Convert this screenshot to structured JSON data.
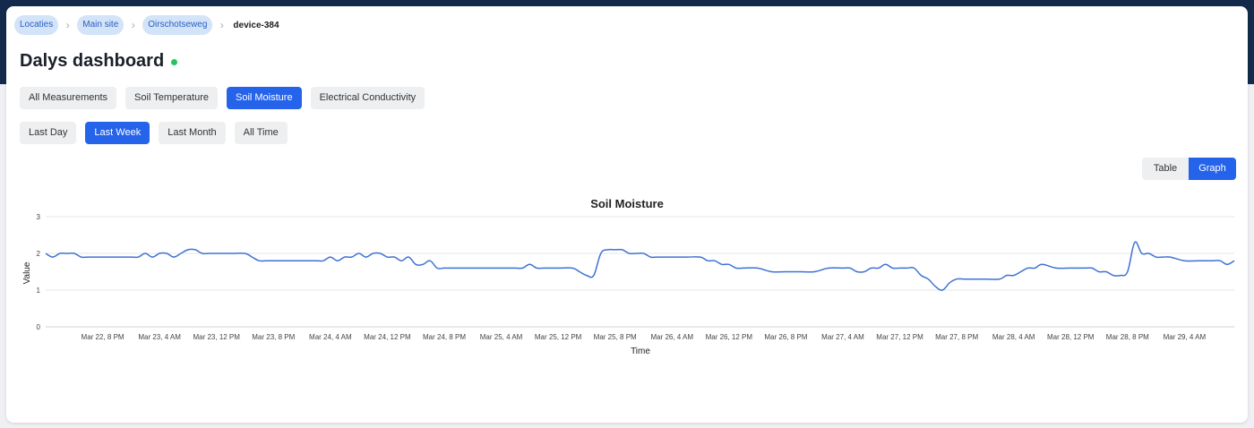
{
  "breadcrumb": {
    "items": [
      "Locaties",
      "Main site",
      "Oirschotseweg"
    ],
    "current": "device-384",
    "separator": "›"
  },
  "page": {
    "title": "Dalys dashboard",
    "status_color": "#22c55e"
  },
  "measurement_tabs": [
    "All Measurements",
    "Soil Temperature",
    "Soil Moisture",
    "Electrical Conductivity"
  ],
  "measurement_active": "Soil Moisture",
  "range_tabs": [
    "Last Day",
    "Last Week",
    "Last Month",
    "All Time"
  ],
  "range_active": "Last Week",
  "view_toggle": {
    "table_label": "Table",
    "graph_label": "Graph",
    "active": "Graph"
  },
  "colors": {
    "accent": "#2563eb",
    "line": "#3f72d4",
    "header_band": "#142a4c"
  },
  "chart_data": {
    "type": "line",
    "title": "Soil Moisture",
    "xlabel": "Time",
    "ylabel": "Value",
    "ylim": [
      0,
      3
    ],
    "yticks": [
      0,
      1,
      2,
      3
    ],
    "grid": true,
    "legend": "none",
    "x_tick_labels": [
      "Mar 22, 8 PM",
      "Mar 23, 4 AM",
      "Mar 23, 12 PM",
      "Mar 23, 8 PM",
      "Mar 24, 4 AM",
      "Mar 24, 12 PM",
      "Mar 24, 8 PM",
      "Mar 25, 4 AM",
      "Mar 25, 12 PM",
      "Mar 25, 8 PM",
      "Mar 26, 4 AM",
      "Mar 26, 12 PM",
      "Mar 26, 8 PM",
      "Mar 27, 4 AM",
      "Mar 27, 12 PM",
      "Mar 27, 8 PM",
      "Mar 28, 4 AM",
      "Mar 28, 12 PM",
      "Mar 28, 8 PM",
      "Mar 29, 4 AM"
    ],
    "x_tick_hours": [
      8,
      16,
      24,
      32,
      40,
      48,
      56,
      64,
      72,
      80,
      88,
      96,
      104,
      112,
      120,
      128,
      136,
      144,
      152,
      160
    ],
    "x_start_label": "Mar 22, 12 PM",
    "x_end_label": "Mar 29, 11 AM",
    "series": [
      {
        "x": [
          0,
          1,
          2,
          3,
          4,
          5,
          6,
          7,
          8,
          10,
          12,
          13,
          14,
          15,
          16,
          17,
          18,
          19,
          20,
          21,
          22,
          23,
          24,
          26,
          28,
          29,
          30,
          31,
          32,
          34,
          36,
          38,
          39,
          40,
          41,
          42,
          43,
          44,
          45,
          46,
          47,
          48,
          49,
          50,
          51,
          52,
          53,
          54,
          55,
          56,
          58,
          60,
          62,
          64,
          66,
          67,
          68,
          69,
          70,
          72,
          74,
          75,
          76,
          77,
          78,
          79,
          80,
          81,
          82,
          83,
          84,
          85,
          86,
          88,
          90,
          92,
          93,
          94,
          95,
          96,
          97,
          98,
          100,
          102,
          104,
          106,
          108,
          110,
          112,
          113,
          114,
          115,
          116,
          117,
          118,
          119,
          120,
          121,
          122,
          123,
          124,
          125,
          126,
          127,
          128,
          129,
          130,
          132,
          134,
          135,
          136,
          137,
          138,
          139,
          140,
          142,
          144,
          146,
          147,
          148,
          149,
          150,
          151,
          152,
          153,
          154,
          155,
          156,
          157,
          158,
          160,
          162,
          163,
          164,
          165,
          166,
          167
        ],
        "y": [
          2.0,
          1.9,
          2.0,
          2.0,
          2.0,
          1.9,
          1.9,
          1.9,
          1.9,
          1.9,
          1.9,
          1.9,
          2.0,
          1.9,
          2.0,
          2.0,
          1.9,
          2.0,
          2.1,
          2.1,
          2.0,
          2.0,
          2.0,
          2.0,
          2.0,
          1.9,
          1.8,
          1.8,
          1.8,
          1.8,
          1.8,
          1.8,
          1.8,
          1.9,
          1.8,
          1.9,
          1.9,
          2.0,
          1.9,
          2.0,
          2.0,
          1.9,
          1.9,
          1.8,
          1.9,
          1.7,
          1.7,
          1.8,
          1.6,
          1.6,
          1.6,
          1.6,
          1.6,
          1.6,
          1.6,
          1.6,
          1.7,
          1.6,
          1.6,
          1.6,
          1.6,
          1.5,
          1.4,
          1.4,
          2.0,
          2.1,
          2.1,
          2.1,
          2.0,
          2.0,
          2.0,
          1.9,
          1.9,
          1.9,
          1.9,
          1.9,
          1.8,
          1.8,
          1.7,
          1.7,
          1.6,
          1.6,
          1.6,
          1.5,
          1.5,
          1.5,
          1.5,
          1.6,
          1.6,
          1.6,
          1.5,
          1.5,
          1.6,
          1.6,
          1.7,
          1.6,
          1.6,
          1.6,
          1.6,
          1.4,
          1.3,
          1.1,
          1.0,
          1.2,
          1.3,
          1.3,
          1.3,
          1.3,
          1.3,
          1.4,
          1.4,
          1.5,
          1.6,
          1.6,
          1.7,
          1.6,
          1.6,
          1.6,
          1.6,
          1.5,
          1.5,
          1.4,
          1.4,
          1.5,
          2.3,
          2.0,
          2.0,
          1.9,
          1.9,
          1.9,
          1.8,
          1.8,
          1.8,
          1.8,
          1.8,
          1.7,
          1.8
        ]
      }
    ]
  }
}
